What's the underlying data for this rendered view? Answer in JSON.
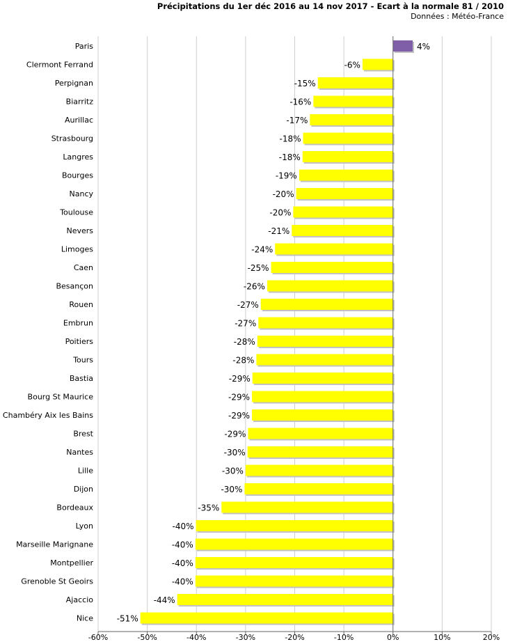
{
  "chart_data": {
    "type": "bar",
    "orientation": "horizontal",
    "title": "Précipitations du 1er déc 2016 au 14 nov 2017 - Ecart à la normale 81 / 2010",
    "subtitle": "Données : Météo-France",
    "xlim": [
      -60,
      20
    ],
    "xticks": [
      -60,
      -50,
      -40,
      -30,
      -20,
      -10,
      0,
      10,
      20
    ],
    "xtick_labels": [
      "-60%",
      "-50%",
      "-40%",
      "-30%",
      "-20%",
      "-10%",
      "0%",
      "10%",
      "20%"
    ],
    "xlabel": "",
    "ylabel": "",
    "grid": "vertical",
    "categories": [
      "Paris",
      "Clermont Ferrand",
      "Perpignan",
      "Biarritz",
      "Aurillac",
      "Strasbourg",
      "Langres",
      "Bourges",
      "Nancy",
      "Toulouse",
      "Nevers",
      "Limoges",
      "Caen",
      "Besançon",
      "Rouen",
      "Embrun",
      "Poitiers",
      "Tours",
      "Bastia",
      "Bourg St Maurice",
      "Chambéry Aix les Bains",
      "Brest",
      "Nantes",
      "Lille",
      "Dijon",
      "Bordeaux",
      "Lyon",
      "Marseille Marignane",
      "Montpellier",
      "Grenoble St Geoirs",
      "Ajaccio",
      "Nice"
    ],
    "values": [
      4,
      -6.2,
      -15.3,
      -16.2,
      -16.9,
      -18.3,
      -18.4,
      -19.1,
      -19.7,
      -20.3,
      -20.6,
      -24,
      -24.8,
      -25.6,
      -26.9,
      -27.4,
      -27.6,
      -27.8,
      -28.6,
      -28.7,
      -28.7,
      -29.5,
      -29.6,
      -30,
      -30.2,
      -34.9,
      -40.1,
      -40.2,
      -40.2,
      -40.2,
      -43.9,
      -51.4
    ],
    "labels": [
      "4%",
      "-6%",
      "-15%",
      "-16%",
      "-17%",
      "-18%",
      "-18%",
      "-19%",
      "-20%",
      "-20%",
      "-21%",
      "-24%",
      "-25%",
      "-26%",
      "-27%",
      "-27%",
      "-28%",
      "-28%",
      "-29%",
      "-29%",
      "-29%",
      "-29%",
      "-30%",
      "-30%",
      "-30%",
      "-35%",
      "-40%",
      "-40%",
      "-40%",
      "-40%",
      "-44%",
      "-51%"
    ],
    "colors": {
      "positive": "#7f5fa8",
      "negative": "#ffff00",
      "shadow": "#c2c2c2",
      "grid": "#cfcfcf",
      "axis": "#666666"
    }
  }
}
